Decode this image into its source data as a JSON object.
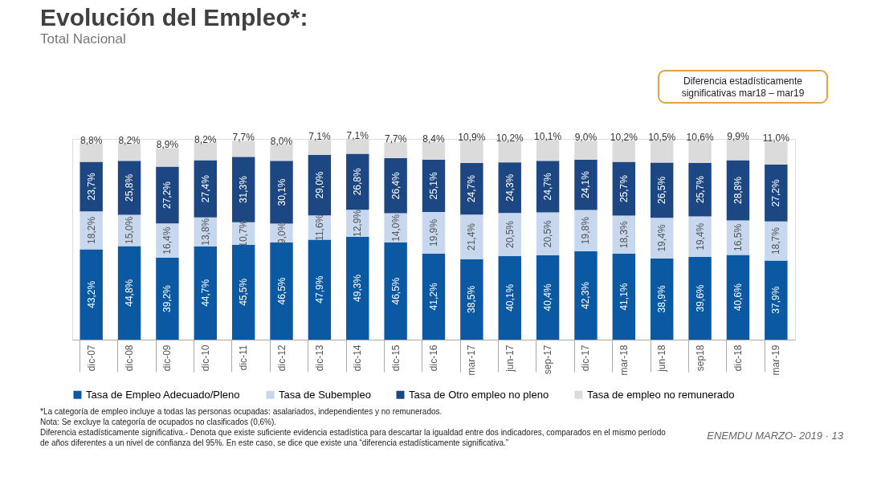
{
  "chart_data": {
    "type": "bar",
    "stacked": true,
    "title": "Evolución del Empleo*:",
    "subtitle": "Total Nacional",
    "categories": [
      "dic-07",
      "dic-08",
      "dic-09",
      "dic-10",
      "dic-11",
      "dic-12",
      "dic-13",
      "dic-14",
      "dic-15",
      "dic-16",
      "mar-17",
      "jun-17",
      "sep-17",
      "dic-17",
      "mar-18",
      "jun-18",
      "sep18",
      "dic-18",
      "mar-19"
    ],
    "series": [
      {
        "name": "Tasa de Empleo Adecuado/Pleno",
        "color": "#0b58a3",
        "values": [
          43.2,
          44.8,
          39.2,
          44.7,
          45.5,
          46.5,
          47.9,
          49.3,
          46.5,
          41.2,
          38.5,
          40.1,
          40.4,
          42.3,
          41.1,
          38.9,
          39.6,
          40.6,
          37.9
        ],
        "value_labels": [
          "43,2%",
          "44,8%",
          "39,2%",
          "44,7%",
          "45,5%",
          "46,5%",
          "47,9%",
          "49,3%",
          "46,5%",
          "41,2%",
          "38,5%",
          "40,1%",
          "40,4%",
          "42,3%",
          "41,1%",
          "38,9%",
          "39,6%",
          "40,6%",
          "37,9%"
        ]
      },
      {
        "name": "Tasa de Subempleo",
        "color": "#c7d7ee",
        "values": [
          18.2,
          15.0,
          16.4,
          13.8,
          10.7,
          9.0,
          11.6,
          12.9,
          14.0,
          19.9,
          21.4,
          20.5,
          20.5,
          19.8,
          18.3,
          19.4,
          19.4,
          16.5,
          18.7
        ],
        "value_labels": [
          "18,2%",
          "15,0%",
          "16,4%",
          "13,8%",
          "10,7%",
          "9,0%",
          "11,6%",
          "12,9%",
          "14,0%",
          "19,9%",
          "21,4%",
          "20,5%",
          "20,5%",
          "19,8%",
          "18,3%",
          "19,4%",
          "19,4%",
          "16,5%",
          "18,7%"
        ]
      },
      {
        "name": "Tasa de Otro empleo no pleno",
        "color": "#1d4783",
        "values": [
          23.7,
          25.8,
          27.2,
          27.4,
          31.3,
          30.1,
          29.0,
          26.8,
          26.4,
          25.1,
          24.7,
          24.3,
          24.7,
          24.1,
          25.7,
          26.5,
          25.7,
          28.8,
          27.2
        ],
        "value_labels": [
          "23,7%",
          "25,8%",
          "27,2%",
          "27,4%",
          "31,3%",
          "30,1%",
          "29,0%",
          "26,8%",
          "26,4%",
          "25,1%",
          "24,7%",
          "24,3%",
          "24,7%",
          "24,1%",
          "25,7%",
          "26,5%",
          "25,7%",
          "28,8%",
          "27,2%"
        ]
      },
      {
        "name": "Tasa de empleo no remunerado",
        "color": "#dcdbdb",
        "values": [
          8.8,
          8.2,
          8.9,
          8.2,
          7.7,
          8.0,
          7.1,
          7.1,
          7.7,
          8.4,
          10.9,
          10.2,
          10.1,
          9.0,
          10.2,
          10.5,
          10.6,
          9.9,
          11.0
        ],
        "value_labels": [
          "8,8%",
          "8,2%",
          "8,9%",
          "8,2%",
          "7,7%",
          "8,0%",
          "7,1%",
          "7,1%",
          "7,7%",
          "8,4%",
          "10,9%",
          "10,2%",
          "10,1%",
          "9,0%",
          "10,2%",
          "10,5%",
          "10,6%",
          "9,9%",
          "11,0%"
        ]
      }
    ],
    "legend": "bottom",
    "grid": false,
    "annotations": [
      "Diferencia estadísticamente significativas  mar18 – mar19",
      "*La categoría de empleo incluye a todas las personas ocupadas: asalariados, independientes y no remunerados.",
      "Nota: Se excluye la categoría de ocupados no clasificados (0,6%).",
      "Diferencia estadísticamente significativa.- Denota que existe suficiente evidencia estadística para descartar la igualdad entre dos indicadores, comparados en el mismo período de años diferentes a un nivel de confianza del 95%. En este caso, se dice que existe una “diferencia estadísticamente significativa.”",
      "ENEMDU MARZO- 2019 · 13"
    ]
  }
}
